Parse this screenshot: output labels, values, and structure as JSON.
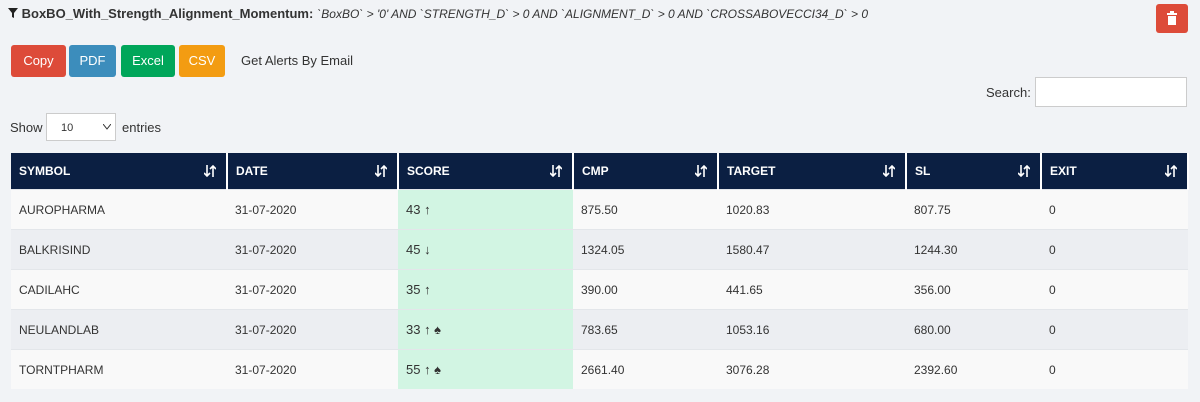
{
  "header": {
    "title": "BoxBO_With_Strength_Alignment_Momentum:",
    "query": "`BoxBO` > '0' AND `STRENGTH_D` > 0 AND `ALIGNMENT_D` > 0 AND `CROSSABOVECCI34_D` > 0"
  },
  "buttons": [
    "Copy",
    "PDF",
    "Excel",
    "CSV"
  ],
  "alerts_link": "Get Alerts By Email",
  "search_label": "Search:",
  "length": {
    "prefix": "Show",
    "value": "10",
    "suffix": "entries"
  },
  "table": {
    "columns": [
      "SYMBOL",
      "DATE",
      "SCORE",
      "CMP",
      "TARGET",
      "SL",
      "EXIT"
    ],
    "rows": [
      [
        "AUROPHARMA",
        "31-07-2020",
        "43 ↑",
        "875.50",
        "1020.83",
        "807.75",
        "0"
      ],
      [
        "BALKRISIND",
        "31-07-2020",
        "45 ↓",
        "1324.05",
        "1580.47",
        "1244.30",
        "0"
      ],
      [
        "CADILAHC",
        "31-07-2020",
        "35 ↑",
        "390.00",
        "441.65",
        "356.00",
        "0"
      ],
      [
        "NEULANDLAB",
        "31-07-2020",
        "33 ↑ ♠",
        "783.65",
        "1053.16",
        "680.00",
        "0"
      ],
      [
        "TORNTPHARM",
        "31-07-2020",
        "55 ↑ ♠",
        "2661.40",
        "3076.28",
        "2392.60",
        "0"
      ]
    ]
  }
}
